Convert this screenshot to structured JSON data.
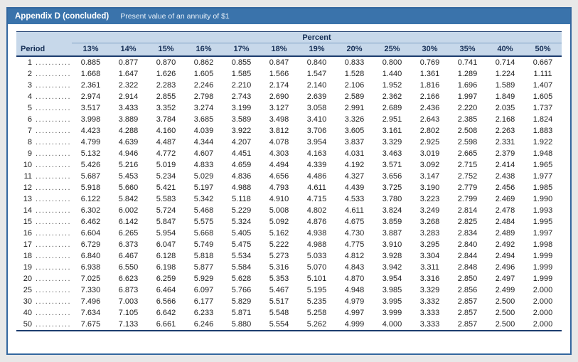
{
  "header": {
    "title_bold": "Appendix D (concluded)",
    "title_sub": "Present value of an annuity of $1"
  },
  "table": {
    "group_header": "Percent",
    "period_header": "Period",
    "rate_headers": [
      "13%",
      "14%",
      "15%",
      "16%",
      "17%",
      "18%",
      "19%",
      "20%",
      "25%",
      "30%",
      "35%",
      "40%",
      "50%"
    ],
    "rows": [
      {
        "period": "1",
        "values": [
          "0.885",
          "0.877",
          "0.870",
          "0.862",
          "0.855",
          "0.847",
          "0.840",
          "0.833",
          "0.800",
          "0.769",
          "0.741",
          "0.714",
          "0.667"
        ]
      },
      {
        "period": "2",
        "values": [
          "1.668",
          "1.647",
          "1.626",
          "1.605",
          "1.585",
          "1.566",
          "1.547",
          "1.528",
          "1.440",
          "1.361",
          "1.289",
          "1.224",
          "1.111"
        ]
      },
      {
        "period": "3",
        "values": [
          "2.361",
          "2.322",
          "2.283",
          "2.246",
          "2.210",
          "2.174",
          "2.140",
          "2.106",
          "1.952",
          "1.816",
          "1.696",
          "1.589",
          "1.407"
        ]
      },
      {
        "period": "4",
        "values": [
          "2.974",
          "2.914",
          "2.855",
          "2.798",
          "2.743",
          "2.690",
          "2.639",
          "2.589",
          "2.362",
          "2.166",
          "1.997",
          "1.849",
          "1.605"
        ]
      },
      {
        "period": "5",
        "values": [
          "3.517",
          "3.433",
          "3.352",
          "3.274",
          "3.199",
          "3.127",
          "3.058",
          "2.991",
          "2.689",
          "2.436",
          "2.220",
          "2.035",
          "1.737"
        ]
      },
      {
        "period": "6",
        "values": [
          "3.998",
          "3.889",
          "3.784",
          "3.685",
          "3.589",
          "3.498",
          "3.410",
          "3.326",
          "2.951",
          "2.643",
          "2.385",
          "2.168",
          "1.824"
        ]
      },
      {
        "period": "7",
        "values": [
          "4.423",
          "4.288",
          "4.160",
          "4.039",
          "3.922",
          "3.812",
          "3.706",
          "3.605",
          "3.161",
          "2.802",
          "2.508",
          "2.263",
          "1.883"
        ]
      },
      {
        "period": "8",
        "values": [
          "4.799",
          "4.639",
          "4.487",
          "4.344",
          "4.207",
          "4.078",
          "3.954",
          "3.837",
          "3.329",
          "2.925",
          "2.598",
          "2.331",
          "1.922"
        ]
      },
      {
        "period": "9",
        "values": [
          "5.132",
          "4.946",
          "4.772",
          "4.607",
          "4.451",
          "4.303",
          "4.163",
          "4.031",
          "3.463",
          "3.019",
          "2.665",
          "2.379",
          "1.948"
        ]
      },
      {
        "period": "10",
        "values": [
          "5.426",
          "5.216",
          "5.019",
          "4.833",
          "4.659",
          "4.494",
          "4.339",
          "4.192",
          "3.571",
          "3.092",
          "2.715",
          "2.414",
          "1.965"
        ]
      },
      {
        "period": "11",
        "values": [
          "5.687",
          "5.453",
          "5.234",
          "5.029",
          "4.836",
          "4.656",
          "4.486",
          "4.327",
          "3.656",
          "3.147",
          "2.752",
          "2.438",
          "1.977"
        ]
      },
      {
        "period": "12",
        "values": [
          "5.918",
          "5.660",
          "5.421",
          "5.197",
          "4.988",
          "4.793",
          "4.611",
          "4.439",
          "3.725",
          "3.190",
          "2.779",
          "2.456",
          "1.985"
        ]
      },
      {
        "period": "13",
        "values": [
          "6.122",
          "5.842",
          "5.583",
          "5.342",
          "5.118",
          "4.910",
          "4.715",
          "4.533",
          "3.780",
          "3.223",
          "2.799",
          "2.469",
          "1.990"
        ]
      },
      {
        "period": "14",
        "values": [
          "6.302",
          "6.002",
          "5.724",
          "5.468",
          "5.229",
          "5.008",
          "4.802",
          "4.611",
          "3.824",
          "3.249",
          "2.814",
          "2.478",
          "1.993"
        ]
      },
      {
        "period": "15",
        "values": [
          "6.462",
          "6.142",
          "5.847",
          "5.575",
          "5.324",
          "5.092",
          "4.876",
          "4.675",
          "3.859",
          "3.268",
          "2.825",
          "2.484",
          "1.995"
        ]
      },
      {
        "period": "16",
        "values": [
          "6.604",
          "6.265",
          "5.954",
          "5.668",
          "5.405",
          "5.162",
          "4.938",
          "4.730",
          "3.887",
          "3.283",
          "2.834",
          "2.489",
          "1.997"
        ]
      },
      {
        "period": "17",
        "values": [
          "6.729",
          "6.373",
          "6.047",
          "5.749",
          "5.475",
          "5.222",
          "4.988",
          "4.775",
          "3.910",
          "3.295",
          "2.840",
          "2.492",
          "1.998"
        ]
      },
      {
        "period": "18",
        "values": [
          "6.840",
          "6.467",
          "6.128",
          "5.818",
          "5.534",
          "5.273",
          "5.033",
          "4.812",
          "3.928",
          "3.304",
          "2.844",
          "2.494",
          "1.999"
        ]
      },
      {
        "period": "19",
        "values": [
          "6.938",
          "6.550",
          "6.198",
          "5.877",
          "5.584",
          "5.316",
          "5.070",
          "4.843",
          "3.942",
          "3.311",
          "2.848",
          "2.496",
          "1.999"
        ]
      },
      {
        "period": "20",
        "values": [
          "7.025",
          "6.623",
          "6.259",
          "5.929",
          "5.628",
          "5.353",
          "5.101",
          "4.870",
          "3.954",
          "3.316",
          "2.850",
          "2.497",
          "1.999"
        ]
      },
      {
        "period": "25",
        "values": [
          "7.330",
          "6.873",
          "6.464",
          "6.097",
          "5.766",
          "5.467",
          "5.195",
          "4.948",
          "3.985",
          "3.329",
          "2.856",
          "2.499",
          "2.000"
        ]
      },
      {
        "period": "30",
        "values": [
          "7.496",
          "7.003",
          "6.566",
          "6.177",
          "5.829",
          "5.517",
          "5.235",
          "4.979",
          "3.995",
          "3.332",
          "2.857",
          "2.500",
          "2.000"
        ]
      },
      {
        "period": "40",
        "values": [
          "7.634",
          "7.105",
          "6.642",
          "6.233",
          "5.871",
          "5.548",
          "5.258",
          "4.997",
          "3.999",
          "3.333",
          "2.857",
          "2.500",
          "2.000"
        ]
      },
      {
        "period": "50",
        "values": [
          "7.675",
          "7.133",
          "6.661",
          "6.246",
          "5.880",
          "5.554",
          "5.262",
          "4.999",
          "4.000",
          "3.333",
          "2.857",
          "2.500",
          "2.000"
        ]
      }
    ]
  }
}
